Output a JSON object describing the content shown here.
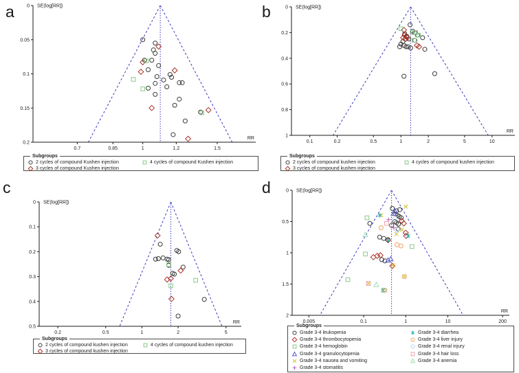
{
  "figure": {
    "background": "#ffffff",
    "funnel_line_color": "#3838bc",
    "axis_color": "#1a1a1a"
  },
  "chart_data": [
    {
      "id": "a",
      "panel_label": "a",
      "type": "scatter",
      "subtype": "funnel-plot",
      "xlabel": "RR",
      "ylabel": "SE(log[RR])",
      "x_scale": "log",
      "xlim": [
        0.55,
        1.85
      ],
      "ylim": [
        0,
        0.2
      ],
      "xticks": [
        0.7,
        0.85,
        1,
        1.2,
        1.5
      ],
      "xtick_labels": [
        "0.7",
        "0.85",
        "1",
        "1.2",
        "1.5"
      ],
      "yticks": [
        0,
        0.05,
        0.1,
        0.15,
        0.2
      ],
      "ytick_labels": [
        "0",
        "0.05",
        "0.1",
        "0.15",
        "0.2"
      ],
      "funnel_center_rr": 1.1,
      "legend_title": "Subgroups",
      "series": [
        {
          "name": "2 cycles of compound Kushen injection",
          "marker": "circle",
          "color": "#3a3a3a",
          "legend_column": 0,
          "points": [
            [
              1.0,
              0.05
            ],
            [
              1.07,
              0.055
            ],
            [
              1.06,
              0.065
            ],
            [
              1.07,
              0.07
            ],
            [
              1.01,
              0.08
            ],
            [
              1.05,
              0.08
            ],
            [
              1.09,
              0.088
            ],
            [
              1.03,
              0.094
            ],
            [
              1.16,
              0.101
            ],
            [
              1.17,
              0.105
            ],
            [
              1.08,
              0.104
            ],
            [
              1.22,
              0.113
            ],
            [
              1.24,
              0.113
            ],
            [
              1.07,
              0.114
            ],
            [
              1.03,
              0.121
            ],
            [
              1.14,
              0.119
            ],
            [
              1.12,
              0.109
            ],
            [
              1.07,
              0.13
            ],
            [
              1.22,
              0.137
            ],
            [
              1.19,
              0.146
            ],
            [
              1.37,
              0.156
            ],
            [
              1.26,
              0.169
            ],
            [
              1.18,
              0.189
            ]
          ]
        },
        {
          "name": "3 cycles of compound Kushen injection",
          "marker": "diamond",
          "color": "#a83228",
          "legend_column": 0,
          "points": [
            [
              1.09,
              0.06
            ],
            [
              1.0,
              0.083
            ],
            [
              0.99,
              0.097
            ],
            [
              1.19,
              0.095
            ],
            [
              1.05,
              0.15
            ],
            [
              1.43,
              0.153
            ],
            [
              1.28,
              0.195
            ]
          ]
        },
        {
          "name": "4 cycles of compound Kushen injection",
          "marker": "square",
          "color": "#88c888",
          "legend_column": 1,
          "points": [
            [
              1.02,
              0.081
            ],
            [
              0.95,
              0.108
            ],
            [
              1.0,
              0.122
            ],
            [
              1.38,
              0.157
            ]
          ]
        }
      ]
    },
    {
      "id": "b",
      "panel_label": "b",
      "type": "scatter",
      "subtype": "funnel-plot",
      "xlabel": "RR",
      "ylabel": "SE(log[RR])",
      "x_scale": "log",
      "xlim": [
        0.063,
        17.8
      ],
      "ylim": [
        0,
        1
      ],
      "xticks": [
        0.1,
        0.2,
        0.5,
        1,
        2,
        5,
        10
      ],
      "xtick_labels": [
        "0.1",
        "0.2",
        "0.5",
        "1",
        "2",
        "5",
        "10"
      ],
      "yticks": [
        0,
        0.2,
        0.4,
        0.6,
        0.8,
        1
      ],
      "ytick_labels": [
        "0",
        "0.2",
        "0.4",
        "0.6",
        "0.8",
        "1"
      ],
      "funnel_center_rr": 1.28,
      "legend_title": "Subgroups",
      "series": [
        {
          "name": "2 cycles of compound kushen injection",
          "marker": "circle",
          "color": "#3a3a3a",
          "legend_column": 0,
          "points": [
            [
              1.26,
              0.14
            ],
            [
              1.35,
              0.19
            ],
            [
              1.42,
              0.2
            ],
            [
              1.52,
              0.22
            ],
            [
              1.73,
              0.24
            ],
            [
              1.1,
              0.21
            ],
            [
              1.16,
              0.23
            ],
            [
              1.22,
              0.25
            ],
            [
              1.05,
              0.27
            ],
            [
              1.0,
              0.29
            ],
            [
              1.08,
              0.3
            ],
            [
              1.14,
              0.31
            ],
            [
              1.2,
              0.31
            ],
            [
              1.28,
              0.32
            ],
            [
              1.42,
              0.26
            ],
            [
              1.83,
              0.33
            ],
            [
              1.08,
              0.54
            ],
            [
              2.35,
              0.52
            ],
            [
              1.12,
              0.25
            ],
            [
              0.97,
              0.31
            ]
          ]
        },
        {
          "name": "3 cycles of compound kushen injection",
          "marker": "diamond",
          "color": "#a83228",
          "legend_column": 0,
          "points": [
            [
              1.08,
              0.18
            ],
            [
              1.1,
              0.22
            ],
            [
              1.14,
              0.23
            ],
            [
              1.06,
              0.24
            ],
            [
              1.12,
              0.25
            ],
            [
              1.18,
              0.24
            ],
            [
              1.5,
              0.3
            ],
            [
              1.58,
              0.31
            ]
          ]
        },
        {
          "name": "4 cycles of compound kushen injection",
          "marker": "square",
          "color": "#88c888",
          "legend_column": 1,
          "points": [
            [
              1.0,
              0.17
            ],
            [
              1.33,
              0.2
            ],
            [
              1.45,
              0.2
            ],
            [
              1.56,
              0.22
            ],
            [
              1.4,
              0.26
            ]
          ]
        }
      ]
    },
    {
      "id": "c",
      "panel_label": "c",
      "type": "scatter",
      "subtype": "funnel-plot",
      "xlabel": "RR",
      "ylabel": "SE(log[RR])",
      "x_scale": "log",
      "xlim": [
        0.14,
        6.7
      ],
      "ylim": [
        0,
        0.5
      ],
      "xticks": [
        0.2,
        0.5,
        1,
        2,
        5
      ],
      "xtick_labels": [
        "0.2",
        "0.5",
        "1",
        "2",
        "5"
      ],
      "yticks": [
        0,
        0.1,
        0.2,
        0.3,
        0.4,
        0.5
      ],
      "ytick_labels": [
        "0",
        "0.1",
        "0.2",
        "0.3",
        "0.4",
        "0.5"
      ],
      "funnel_center_rr": 1.74,
      "legend_title": "Subgroups",
      "series": [
        {
          "name": "2 cycles of compound kushen injection",
          "marker": "circle",
          "color": "#3a3a3a",
          "legend_column": 0,
          "points": [
            [
              1.42,
              0.17
            ],
            [
              1.95,
              0.195
            ],
            [
              2.02,
              0.2
            ],
            [
              1.3,
              0.23
            ],
            [
              1.37,
              0.228
            ],
            [
              1.5,
              0.225
            ],
            [
              1.62,
              0.23
            ],
            [
              1.67,
              0.232
            ],
            [
              1.67,
              0.255
            ],
            [
              2.2,
              0.262
            ],
            [
              1.8,
              0.287
            ],
            [
              1.86,
              0.29
            ],
            [
              3.3,
              0.392
            ],
            [
              2.0,
              0.459
            ]
          ]
        },
        {
          "name": "3 cycles of compound kushen injection",
          "marker": "diamond",
          "color": "#a83228",
          "legend_column": 0,
          "points": [
            [
              1.35,
              0.135
            ],
            [
              2.1,
              0.276
            ],
            [
              1.62,
              0.312
            ],
            [
              1.74,
              0.308
            ],
            [
              1.76,
              0.39
            ]
          ]
        },
        {
          "name": "4 cycles of compound kushen injection",
          "marker": "square",
          "color": "#88c888",
          "legend_column": 1,
          "points": [
            [
              1.67,
              0.252
            ],
            [
              2.8,
              0.315
            ],
            [
              1.74,
              0.337
            ]
          ]
        }
      ]
    },
    {
      "id": "d",
      "panel_label": "d",
      "type": "scatter",
      "subtype": "funnel-plot",
      "xlabel": "RR",
      "ylabel": "SE(log[RR])",
      "x_scale": "log",
      "xlim": [
        0.002,
        290
      ],
      "ylim": [
        0,
        2
      ],
      "xticks": [
        0.005,
        0.1,
        1,
        10,
        200
      ],
      "xtick_labels": [
        "0.005",
        "0.1",
        "1",
        "10",
        "200"
      ],
      "yticks": [
        0,
        0.5,
        1,
        1.5,
        2
      ],
      "ytick_labels": [
        "0",
        "0.5",
        "1",
        "1.5",
        "2"
      ],
      "funnel_center_rr": 0.46,
      "legend_title": "Subgroups",
      "series": [
        {
          "name": "Grade 3-4 leukopenia",
          "marker": "circle",
          "color": "#3a3a3a",
          "legend_column": 0,
          "points": [
            [
              0.48,
              0.29
            ],
            [
              0.6,
              0.33
            ],
            [
              0.72,
              0.31
            ],
            [
              0.56,
              0.38
            ],
            [
              0.63,
              0.4
            ],
            [
              0.7,
              0.42
            ],
            [
              0.78,
              0.44
            ],
            [
              0.55,
              0.5
            ],
            [
              0.6,
              0.52
            ],
            [
              0.67,
              0.54
            ],
            [
              0.46,
              0.56
            ],
            [
              0.66,
              0.62
            ],
            [
              0.14,
              0.53
            ],
            [
              0.24,
              0.75
            ],
            [
              0.3,
              0.77
            ],
            [
              0.38,
              0.79
            ],
            [
              0.27,
              1.11
            ],
            [
              0.32,
              1.13
            ]
          ]
        },
        {
          "name": "Grade 3-4 thrombocytopenia",
          "marker": "diamond",
          "color": "#a83228",
          "legend_column": 0,
          "points": [
            [
              0.8,
              0.49
            ],
            [
              0.9,
              0.53
            ],
            [
              1.0,
              0.68
            ],
            [
              0.38,
              0.8
            ],
            [
              0.17,
              1.07
            ],
            [
              0.21,
              1.05
            ],
            [
              0.25,
              1.04
            ],
            [
              0.48,
              1.21
            ],
            [
              1.02,
              0.73
            ]
          ]
        },
        {
          "name": "Grade 3-4 hemoglobin",
          "marker": "square",
          "color": "#88c888",
          "legend_column": 0,
          "points": [
            [
              0.11,
              1.02
            ],
            [
              0.042,
              1.43
            ],
            [
              1.4,
              0.9
            ],
            [
              0.3,
              1.6
            ],
            [
              0.12,
              0.44
            ]
          ]
        },
        {
          "name": "Grade 3-4 granulocytopenia",
          "marker": "triangle",
          "color": "#5656c8",
          "legend_column": 0,
          "points": [
            [
              0.55,
              0.33
            ],
            [
              0.51,
              0.37
            ],
            [
              0.38,
              1.12
            ],
            [
              0.44,
              1.1
            ]
          ]
        },
        {
          "name": "Grade 3-4 nausea and vomiting",
          "marker": "x",
          "color": "#d4c428",
          "legend_column": 0,
          "points": [
            [
              1.0,
              0.26
            ],
            [
              0.26,
              0.4
            ],
            [
              0.6,
              0.7
            ],
            [
              0.82,
              0.63
            ],
            [
              0.13,
              1.49
            ],
            [
              0.93,
              1.38
            ],
            [
              0.5,
              1.2
            ]
          ]
        },
        {
          "name": "Grade 3-4 stomatitis",
          "marker": "plus",
          "color": "#c05cc0",
          "legend_column": 0,
          "points": [
            [
              0.39,
              0.47
            ],
            [
              0.52,
              0.6
            ]
          ]
        },
        {
          "name": "Grade 3-4 diarrhea",
          "marker": "asterisk",
          "color": "#2cb0b0",
          "legend_column": 1,
          "points": [
            [
              0.24,
              0.4
            ],
            [
              0.38,
              0.8
            ],
            [
              1.15,
              0.73
            ],
            [
              0.29,
              1.6
            ]
          ]
        },
        {
          "name": "Grade 3-4 liver injury",
          "marker": "circle",
          "color": "#eea25e",
          "legend_column": 1,
          "points": [
            [
              0.62,
              0.87
            ],
            [
              0.77,
              0.89
            ],
            [
              0.26,
              0.6
            ],
            [
              0.93,
              1.38
            ],
            [
              0.32,
              1.6
            ]
          ]
        },
        {
          "name": "Grade 3-4 renal injury",
          "marker": "diamond",
          "color": "#c6d8ee",
          "legend_column": 1,
          "points": [
            [
              0.62,
              0.64
            ],
            [
              0.55,
              0.45
            ]
          ]
        },
        {
          "name": "Grade 3-4 hair loss",
          "marker": "square",
          "color": "#eea4ae",
          "legend_column": 1,
          "points": [
            [
              0.35,
              0.53
            ],
            [
              0.13,
              1.49
            ]
          ]
        },
        {
          "name": "Grade 3-4 anemia",
          "marker": "triangle",
          "color": "#9cdcb0",
          "legend_column": 1,
          "points": [
            [
              0.11,
              0.71
            ],
            [
              0.2,
              1.51
            ]
          ]
        }
      ]
    }
  ]
}
